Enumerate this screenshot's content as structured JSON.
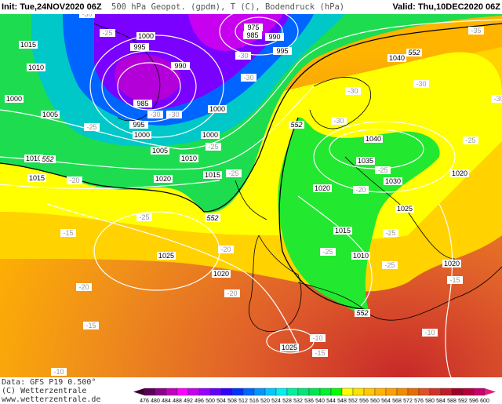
{
  "header": {
    "init": "Init: Tue,24NOV2020 06Z",
    "title": "500 hPa Geopot. (gpdm), T (C), Bodendruck (hPa)",
    "valid": "Valid: Thu,10DEC2020 06Z"
  },
  "map": {
    "region": "North Atlantic / Europe",
    "isobar_labels": [
      "975",
      "985",
      "990",
      "995",
      "1000",
      "995",
      "1015",
      "1010",
      "990",
      "1000",
      "1005",
      "985",
      "995",
      "1000",
      "1000",
      "1000",
      "1005",
      "1010",
      "1010",
      "1015",
      "1020",
      "1015",
      "1040",
      "1040",
      "1035",
      "1030",
      "1020",
      "1025",
      "1020",
      "1025",
      "1020",
      "1015",
      "1010",
      "1020",
      "1025"
    ],
    "geopot_labels": [
      "552",
      "552",
      "552",
      "552",
      "552"
    ],
    "temp_labels": [
      "-30",
      "-25",
      "-30",
      "-30",
      "-30",
      "-30",
      "-25",
      "-20",
      "-25",
      "-25",
      "-25",
      "-15",
      "-20",
      "-20",
      "-20",
      "-15",
      "-10",
      "-15",
      "-10",
      "-15",
      "-10",
      "-20",
      "-25",
      "-30",
      "-30",
      "-25",
      "-30",
      "-35",
      "-25",
      "-25",
      "-25",
      "-30"
    ]
  },
  "footer": {
    "data": "Data: GFS P19 0.500°",
    "copyright": "(C) Wetterzentrale",
    "url": "www.wetterzentrale.de"
  },
  "colorbar": {
    "ticks": [
      "476",
      "480",
      "484",
      "488",
      "492",
      "496",
      "500",
      "504",
      "508",
      "512",
      "516",
      "520",
      "524",
      "528",
      "532",
      "536",
      "540",
      "544",
      "548",
      "552",
      "556",
      "560",
      "564",
      "568",
      "572",
      "576",
      "580",
      "584",
      "588",
      "592",
      "596",
      "600"
    ],
    "colors": [
      "#5a0058",
      "#8a0088",
      "#c000c0",
      "#ff00ff",
      "#c800f0",
      "#9600ff",
      "#6400ff",
      "#3200ff",
      "#0032ff",
      "#0064ff",
      "#0096ff",
      "#00c8ff",
      "#00f0f0",
      "#00f0a0",
      "#00e678",
      "#00e650",
      "#00f032",
      "#00ff00",
      "#ffff00",
      "#ffe100",
      "#ffc800",
      "#ffb400",
      "#ffa000",
      "#f08c00",
      "#e66e00",
      "#e05028",
      "#d23228",
      "#be1e28",
      "#a00028",
      "#b4003c",
      "#c8006e"
    ],
    "low_color": "#3c0032",
    "high_color": "#dc1e78"
  }
}
